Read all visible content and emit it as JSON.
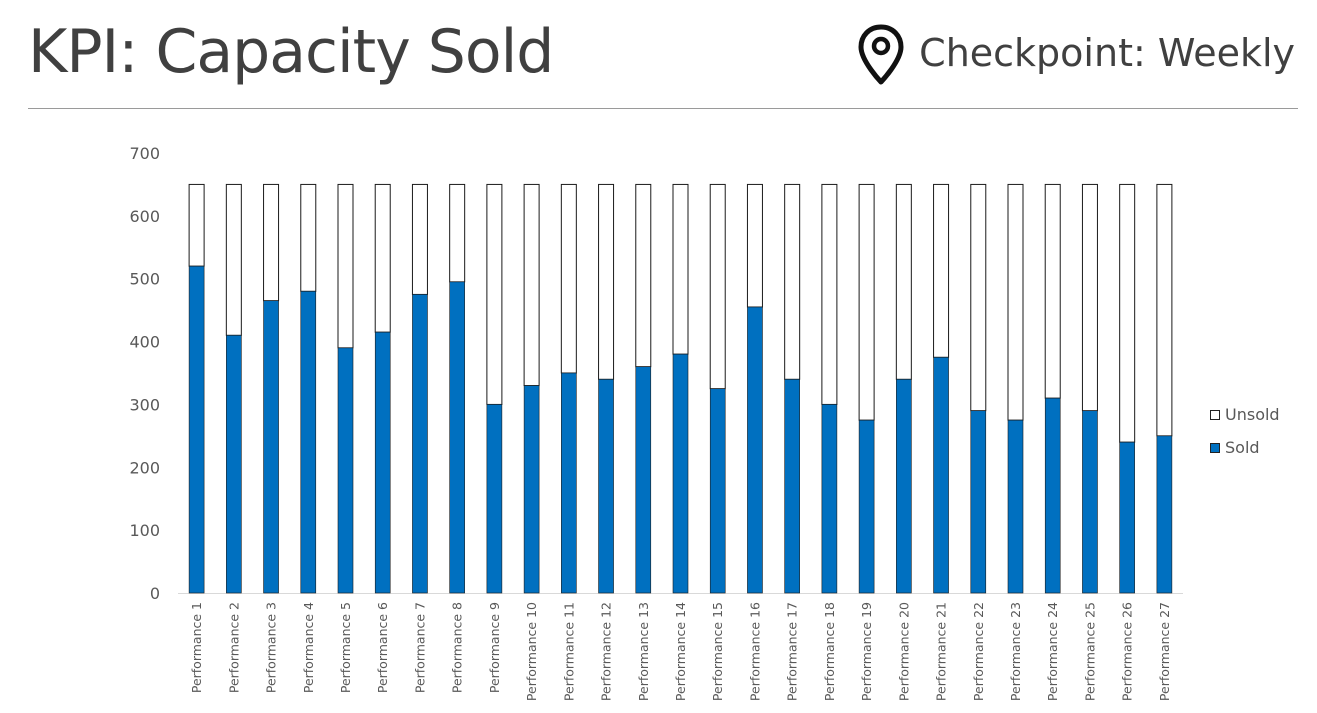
{
  "header": {
    "title": "KPI: Capacity Sold",
    "checkpoint": "Checkpoint: Weekly",
    "icon": "map-pin-icon"
  },
  "colors": {
    "sold": "#0070C0",
    "unsold": "#FFFFFF",
    "outline": "#1a1a1a",
    "axis_text": "#595959"
  },
  "chart_data": {
    "type": "bar",
    "stacked": true,
    "title": "",
    "xlabel": "",
    "ylabel": "",
    "ylim": [
      0,
      700
    ],
    "yticks": [
      0,
      100,
      200,
      300,
      400,
      500,
      600,
      700
    ],
    "grid": false,
    "legend_position": "right",
    "categories": [
      "Performance 1",
      "Performance 2",
      "Performance 3",
      "Performance 4",
      "Performance 5",
      "Performance 6",
      "Performance 7",
      "Performance 8",
      "Performance 9",
      "Performance 10",
      "Performance 11",
      "Performance 12",
      "Performance 13",
      "Performance 14",
      "Performance 15",
      "Performance 16",
      "Performance 17",
      "Performance 18",
      "Performance 19",
      "Performance 20",
      "Performance 21",
      "Performance 22",
      "Performance 23",
      "Performance 24",
      "Performance 25",
      "Performance 26",
      "Performance 27"
    ],
    "series": [
      {
        "name": "Sold",
        "values": [
          520,
          410,
          465,
          480,
          390,
          415,
          475,
          495,
          300,
          330,
          350,
          340,
          360,
          380,
          325,
          455,
          340,
          300,
          275,
          340,
          375,
          290,
          275,
          310,
          290,
          240,
          250
        ]
      },
      {
        "name": "Unsold",
        "values": [
          130,
          240,
          185,
          170,
          260,
          235,
          175,
          155,
          350,
          320,
          300,
          310,
          290,
          270,
          325,
          195,
          310,
          350,
          375,
          310,
          275,
          360,
          375,
          340,
          360,
          410,
          400
        ]
      }
    ]
  }
}
